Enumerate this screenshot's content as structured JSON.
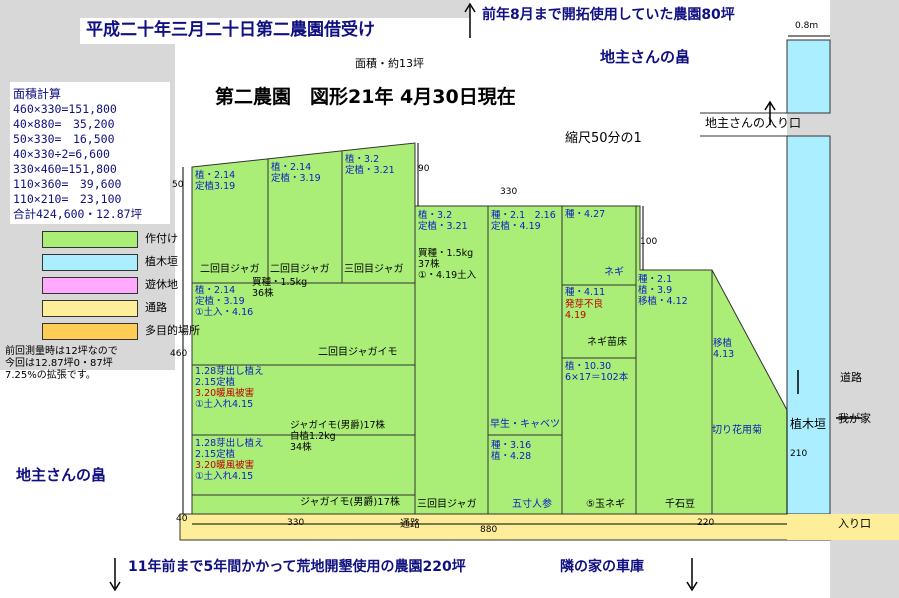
{
  "header": {
    "title": "平成二十年三月二十日第二農園借受け",
    "prev_farm": "前年8月まで開拓使用していた農園80坪",
    "main_title": "第二農園　図形21年 4月30日現在",
    "area_note": "面積・約13坪",
    "scale": "縮尺50分の1"
  },
  "labels": {
    "landowner_field_top": "地主さんの畠",
    "landowner_field_left": "地主さんの畠",
    "landowner_entrance": "地主さんの入り口",
    "hedge": "植木垣",
    "road_right": "道路",
    "to_my_house": "我が家",
    "entrance": "入り口",
    "road_bottom": "通路",
    "old_farm": "11年前まで5年間かかって荒地開墾使用の農園220坪",
    "neighbor_garage": "隣の家の車庫"
  },
  "area_calc": {
    "heading": "面積計算",
    "lines": [
      "460×330=151,800",
      "40×880=　35,200",
      "50×330=　16,500",
      "40×330÷2=6,600",
      "330×460=151,800",
      "110×360=　39,600",
      "110×210=　23,100",
      "合計424,600・12.87坪"
    ]
  },
  "legend": [
    {
      "label": "作付け",
      "color": "#aaee77"
    },
    {
      "label": "植木垣",
      "color": "#aaeeff"
    },
    {
      "label": "遊休地",
      "color": "#ffaaff"
    },
    {
      "label": "通路",
      "color": "#ffee99"
    },
    {
      "label": "多目的場所",
      "color": "#ffcc55"
    }
  ],
  "survey_note": [
    "前回測量時は12坪なので",
    "今回は12.87坪0・87坪",
    "7.25%の拡張です。"
  ],
  "dimensions": {
    "d50": "50",
    "d90": "90",
    "d330_top": "330",
    "d100": "100",
    "d460": "460",
    "d210": "210",
    "d40": "40",
    "d330_bottom": "330",
    "d880": "880",
    "d220": "220",
    "d08m": "0.8m"
  },
  "plots": {
    "p1": [
      "植・2.14",
      "定植3.19"
    ],
    "p2": [
      "植・2.14",
      "定植・3.19"
    ],
    "p3": [
      "植・3.2",
      "定植・3.21"
    ],
    "p4": [
      "植・3.2",
      "定植・3.21"
    ],
    "p5": [
      "種・2.1　2.16",
      "定植・4.19"
    ],
    "p6": [
      "種・4.27"
    ],
    "row_nijaga": [
      "二回目ジャガ",
      "二回目ジャガ",
      "三回目ジャガ"
    ],
    "p_buy": [
      "買種・1.5kg",
      "37株",
      "①・4.19土入"
    ],
    "p_buy2": [
      "買種・1.5kg",
      "36株"
    ],
    "negi": "ネギ",
    "p7": [
      "種・4.11"
    ],
    "p7_red": [
      "発芽不良",
      "4.19"
    ],
    "negi_nae": "ネギ苗床",
    "p8": [
      "種・2.1",
      "植・3.9",
      "移植・4.12"
    ],
    "p9": [
      "植・2.14",
      "定植・3.19",
      "①土入・4.16"
    ],
    "nijaga_row": "二回目ジャガイモ",
    "p10": [
      "植・10.30",
      "6×17＝102本"
    ],
    "p11": [
      "移植",
      "4.13"
    ],
    "p12_blk": [
      "1.28芽出し植え",
      "2.15定植"
    ],
    "p12_red": "3.20暖風被害",
    "p12_blk2": "①土入れ4.15",
    "p13": [
      "ジャガイモ(男爵)17株",
      "自植1.2kg",
      "34株"
    ],
    "cabbage": "早生・キャベツ",
    "p14": [
      "種・3.16",
      "植・4.28"
    ],
    "kiribana": "切り花用菊",
    "p15_blk": [
      "1.28芽出し植え",
      "2.15定植"
    ],
    "p15_red": "3.20暖風被害",
    "p15_blk2": "①土入れ4.15",
    "bottom": {
      "jaga": "ジャガイモ(男爵)17株",
      "sankai": "三回目ジャガ",
      "ninjin": "五寸人参",
      "tamanegi": "⑤玉ネギ",
      "sengoku": "千石豆"
    }
  }
}
